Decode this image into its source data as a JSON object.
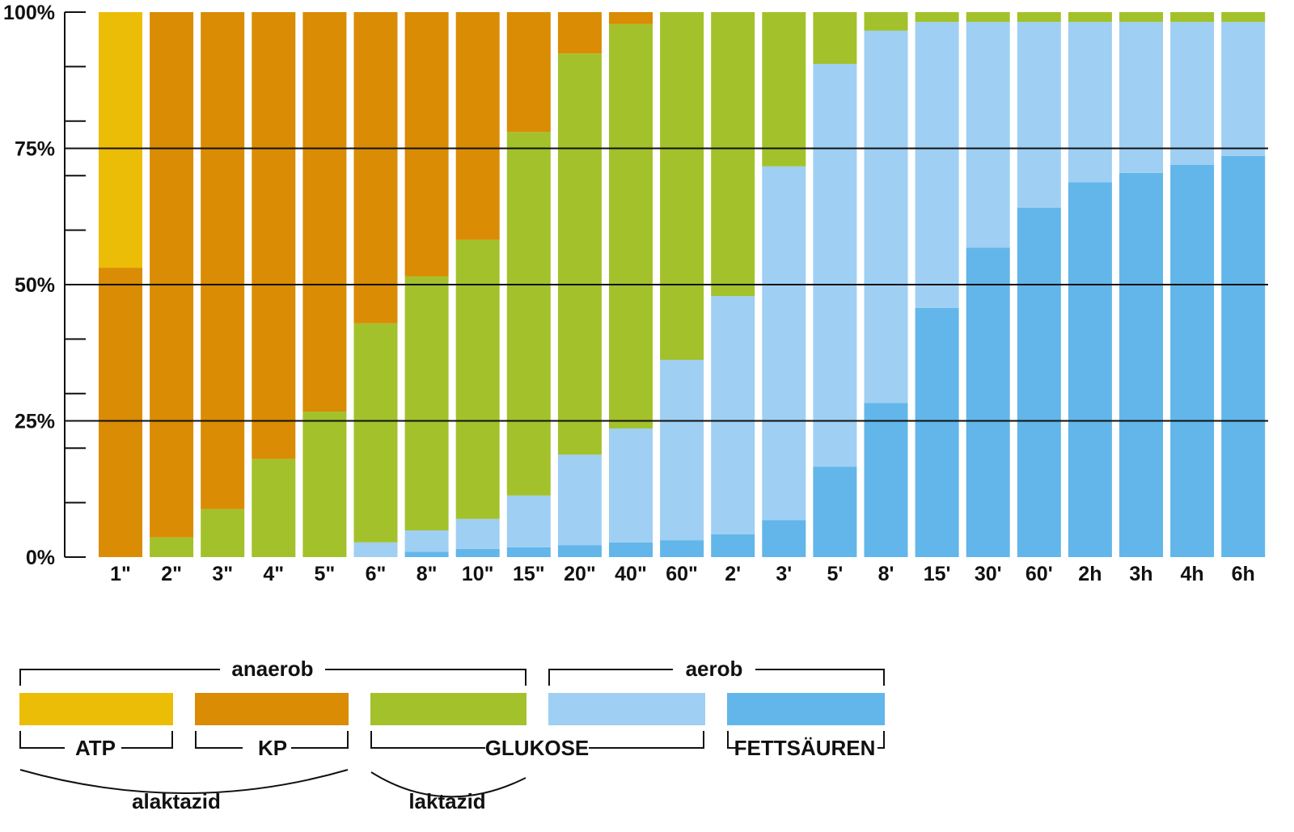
{
  "chart_data": {
    "type": "bar",
    "stacked": true,
    "percent": true,
    "categories": [
      "1\"",
      "2\"",
      "3\"",
      "4\"",
      "5\"",
      "6\"",
      "8\"",
      "10\"",
      "15\"",
      "20\"",
      "40\"",
      "60\"",
      "2'",
      "3'",
      "5'",
      "8'",
      "15'",
      "30'",
      "60'",
      "2h",
      "3h",
      "4h",
      "6h"
    ],
    "series": [
      {
        "name": "FETTSÄUREN",
        "color": "#62b6ea",
        "values": [
          0,
          0,
          0,
          0,
          0,
          0,
          1.0,
          1.5,
          1.8,
          2.2,
          2.7,
          3.1,
          4.2,
          6.8,
          16.6,
          28.3,
          45.7,
          56.8,
          64.1,
          68.8,
          70.5,
          72.0,
          73.6
        ]
      },
      {
        "name": "GLUKOSE (aerob)",
        "color": "#9fcff3",
        "values": [
          0,
          0,
          0,
          0,
          0,
          2.7,
          3.9,
          5.5,
          9.5,
          16.6,
          20.9,
          33.1,
          43.7,
          64.9,
          73.9,
          68.3,
          52.5,
          41.4,
          34.1,
          29.4,
          27.7,
          26.2,
          24.6
        ]
      },
      {
        "name": "GLUKOSE (anaerob)",
        "color": "#a3c12b",
        "values": [
          0,
          3.6,
          8.8,
          18.0,
          26.7,
          40.2,
          46.6,
          51.2,
          66.7,
          73.6,
          74.2,
          63.8,
          52.1,
          28.3,
          9.5,
          3.4,
          1.8,
          1.8,
          1.8,
          1.8,
          1.8,
          1.8,
          1.8
        ]
      },
      {
        "name": "KP",
        "color": "#d98c04",
        "values": [
          53.1,
          96.4,
          91.2,
          82.0,
          73.3,
          57.1,
          48.5,
          41.8,
          22.0,
          7.6,
          2.2,
          0,
          0,
          0,
          0,
          0,
          0,
          0,
          0,
          0,
          0,
          0,
          0
        ]
      },
      {
        "name": "ATP",
        "color": "#ebbd06",
        "values": [
          46.9,
          0,
          0,
          0,
          0,
          0,
          0,
          0,
          0,
          0,
          0,
          0,
          0,
          0,
          0,
          0,
          0,
          0,
          0,
          0,
          0,
          0,
          0
        ]
      }
    ],
    "yticks": [
      "0%",
      "25%",
      "50%",
      "75%",
      "100%"
    ],
    "ylim": [
      0,
      100
    ],
    "grid": "horizontal lines at 25/50/75",
    "legend": {
      "groups": {
        "anaerob": "anaerob",
        "aerob": "aerob",
        "alaktazid": "alaktazid",
        "laktazid": "laktazid"
      },
      "items": [
        "ATP",
        "KP",
        "GLUKOSE",
        "FETTSÄUREN"
      ],
      "placement": "bottom"
    }
  }
}
